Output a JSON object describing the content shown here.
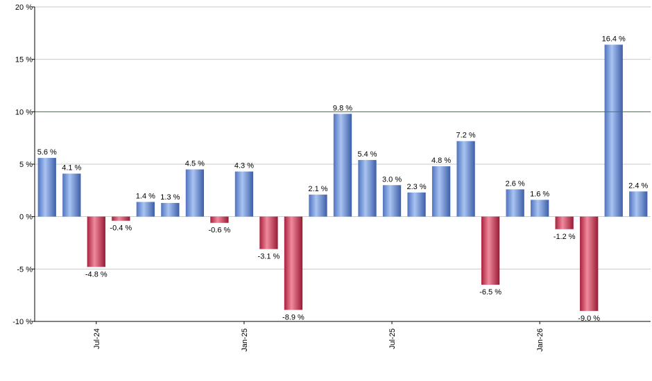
{
  "chart_data": {
    "type": "bar",
    "title": "",
    "xlabel": "",
    "ylabel": "",
    "ylim": [
      -10,
      20
    ],
    "y_ticks": [
      {
        "value": -10,
        "label": "-10 %"
      },
      {
        "value": -5,
        "label": "-5 %"
      },
      {
        "value": 0,
        "label": "0 %"
      },
      {
        "value": 5,
        "label": "5 %"
      },
      {
        "value": 10,
        "label": "10 %"
      },
      {
        "value": 15,
        "label": "15 %"
      },
      {
        "value": 20,
        "label": "20 %"
      }
    ],
    "x_ticks": [
      {
        "index": 2,
        "label": "Jul-24"
      },
      {
        "index": 8,
        "label": "Jan-25"
      },
      {
        "index": 14,
        "label": "Jul-25"
      },
      {
        "index": 20,
        "label": "Jan-26"
      }
    ],
    "reference_line": {
      "value": 10,
      "color": "#2e8b2e"
    },
    "grid": true,
    "colors": {
      "positive": "#6f95dc",
      "negative": "#c8324f"
    },
    "values": [
      5.6,
      4.1,
      -4.8,
      -0.4,
      1.4,
      1.3,
      4.5,
      -0.6,
      4.3,
      -3.1,
      -8.9,
      2.1,
      9.8,
      5.4,
      3.0,
      2.3,
      4.8,
      7.2,
      -6.5,
      2.6,
      1.6,
      -1.2,
      -9.0,
      16.4,
      2.4
    ],
    "labels": [
      "5.6 %",
      "4.1 %",
      "-4.8 %",
      "-0.4 %",
      "1.4 %",
      "1.3 %",
      "4.5 %",
      "-0.6 %",
      "4.3 %",
      "-3.1 %",
      "-8.9 %",
      "2.1 %",
      "9.8 %",
      "5.4 %",
      "3.0 %",
      "2.3 %",
      "4.8 %",
      "7.2 %",
      "-6.5 %",
      "2.6 %",
      "1.6 %",
      "-1.2 %",
      "-9.0 %",
      "16.4 %",
      "2.4 %"
    ]
  }
}
